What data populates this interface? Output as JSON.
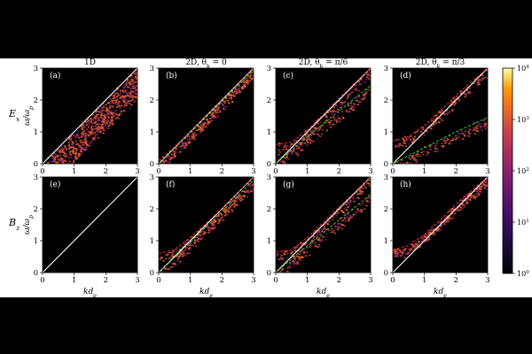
{
  "figure": {
    "column_titles": [
      "1D",
      "2D, θ_k = 0",
      "2D, θ_k = π/6",
      "2D, θ_k = π/3"
    ],
    "row_labels": [
      "E_x",
      "B_z"
    ],
    "panel_labels": [
      "(a)",
      "(b)",
      "(c)",
      "(d)",
      "(e)",
      "(f)",
      "(g)",
      "(h)"
    ],
    "xlabel": "kd_e",
    "ylabel": "ω/ω_p",
    "colorbar": {
      "scale": "log",
      "range": [
        1,
        10000
      ],
      "tick_labels": [
        "10^0",
        "10^1",
        "10^2",
        "10^3",
        "10^4"
      ],
      "colormap": "inferno"
    },
    "colors": {
      "background": "#000000",
      "diagonal": "#ffffff",
      "red_dashed": "#ff2a2a",
      "green_dashed": "#33cc33"
    }
  },
  "chart_data": {
    "type": "heatmap",
    "xlim": [
      0,
      3
    ],
    "ylim": [
      0,
      3
    ],
    "xticks": [
      0,
      1,
      2,
      3
    ],
    "yticks": [
      0,
      1,
      2,
      3
    ],
    "panels": [
      {
        "label": "(a)",
        "row": "E_x",
        "column": "1D",
        "curves": [
          {
            "style": "solid",
            "color": "white",
            "points": [
              [
                0,
                0
              ],
              [
                3,
                3
              ]
            ]
          }
        ]
      },
      {
        "label": "(b)",
        "row": "E_x",
        "column": "2D, θ_k = 0",
        "curves": [
          {
            "style": "solid",
            "color": "white",
            "points": [
              [
                0,
                0
              ],
              [
                3,
                3
              ]
            ]
          },
          {
            "style": "dashed",
            "color": "red",
            "points": [
              [
                0,
                0.1
              ],
              [
                0.5,
                0.52
              ],
              [
                1,
                1.0
              ],
              [
                2,
                1.98
              ],
              [
                3,
                2.98
              ]
            ]
          },
          {
            "style": "dashed",
            "color": "green",
            "points": [
              [
                0,
                0
              ],
              [
                1,
                0.97
              ],
              [
                2,
                1.95
              ],
              [
                3,
                2.92
              ]
            ]
          }
        ]
      },
      {
        "label": "(c)",
        "row": "E_x",
        "column": "2D, θ_k = π/6",
        "curves": [
          {
            "style": "solid",
            "color": "white",
            "points": [
              [
                0,
                0
              ],
              [
                3,
                3
              ]
            ]
          },
          {
            "style": "dashed",
            "color": "red",
            "points": [
              [
                0,
                0.6
              ],
              [
                0.5,
                0.68
              ],
              [
                1,
                1.05
              ],
              [
                1.5,
                1.55
              ],
              [
                2,
                2.05
              ],
              [
                3,
                3.0
              ]
            ]
          },
          {
            "style": "dashed",
            "color": "green",
            "points": [
              [
                0,
                0
              ],
              [
                1,
                0.85
              ],
              [
                2,
                1.65
              ],
              [
                3,
                2.45
              ]
            ]
          }
        ]
      },
      {
        "label": "(d)",
        "row": "E_x",
        "column": "2D, θ_k = π/3",
        "curves": [
          {
            "style": "solid",
            "color": "white",
            "points": [
              [
                0,
                0
              ],
              [
                3,
                3
              ]
            ]
          },
          {
            "style": "dashed",
            "color": "red",
            "points": [
              [
                0,
                0.72
              ],
              [
                0.5,
                0.85
              ],
              [
                1,
                1.2
              ],
              [
                1.5,
                1.65
              ],
              [
                2,
                2.15
              ],
              [
                3,
                3.0
              ]
            ]
          },
          {
            "style": "dashed",
            "color": "green",
            "points": [
              [
                0,
                0
              ],
              [
                1,
                0.5
              ],
              [
                2,
                1.0
              ],
              [
                3,
                1.45
              ]
            ]
          }
        ]
      },
      {
        "label": "(e)",
        "row": "B_z",
        "column": "1D",
        "curves": [
          {
            "style": "solid",
            "color": "white",
            "points": [
              [
                0,
                0
              ],
              [
                3,
                3
              ]
            ]
          }
        ]
      },
      {
        "label": "(f)",
        "row": "B_z",
        "column": "2D, θ_k = 0",
        "curves": [
          {
            "style": "solid",
            "color": "white",
            "points": [
              [
                0,
                0
              ],
              [
                3,
                3
              ]
            ]
          },
          {
            "style": "dashed",
            "color": "red",
            "points": [
              [
                0,
                0.6
              ],
              [
                0.5,
                0.72
              ],
              [
                1,
                1.1
              ],
              [
                2,
                2.0
              ],
              [
                3,
                3.0
              ]
            ]
          },
          {
            "style": "dashed",
            "color": "green",
            "points": [
              [
                0,
                0
              ],
              [
                1,
                0.95
              ],
              [
                2,
                1.92
              ],
              [
                3,
                2.9
              ]
            ]
          }
        ]
      },
      {
        "label": "(g)",
        "row": "B_z",
        "column": "2D, θ_k = π/6",
        "curves": [
          {
            "style": "solid",
            "color": "white",
            "points": [
              [
                0,
                0
              ],
              [
                3,
                3
              ]
            ]
          },
          {
            "style": "dashed",
            "color": "red",
            "points": [
              [
                0,
                0.65
              ],
              [
                0.5,
                0.72
              ],
              [
                1,
                1.1
              ],
              [
                2,
                2.05
              ],
              [
                3,
                3.0
              ]
            ]
          },
          {
            "style": "dashed",
            "color": "green",
            "points": [
              [
                0,
                0
              ],
              [
                1,
                0.85
              ],
              [
                2,
                1.65
              ],
              [
                3,
                2.45
              ]
            ]
          }
        ]
      },
      {
        "label": "(h)",
        "row": "B_z",
        "column": "2D, θ_k = π/3",
        "curves": [
          {
            "style": "solid",
            "color": "white",
            "points": [
              [
                0,
                0
              ],
              [
                3,
                3
              ]
            ]
          },
          {
            "style": "dashed",
            "color": "red",
            "points": [
              [
                0,
                0.72
              ],
              [
                0.5,
                0.85
              ],
              [
                1,
                1.2
              ],
              [
                1.5,
                1.65
              ],
              [
                2,
                2.15
              ],
              [
                3,
                3.0
              ]
            ]
          }
        ]
      }
    ]
  }
}
